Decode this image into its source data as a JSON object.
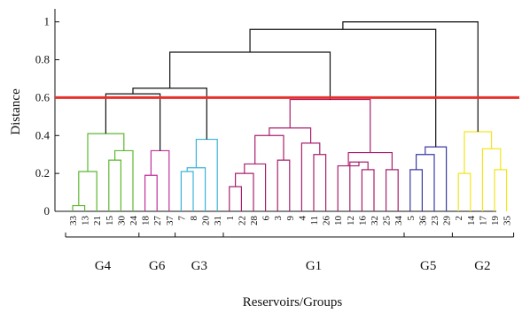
{
  "chart_data": {
    "type": "dendrogram",
    "xlabel": "Reservoirs/Groups",
    "ylabel": "Distance",
    "ylim": [
      0,
      1.05
    ],
    "yticks": [
      0,
      0.2,
      0.4,
      0.6,
      0.8,
      1
    ],
    "ytick_labels": [
      "0",
      "0.2",
      "0.4",
      "0.6",
      "0.8",
      "1"
    ],
    "cut_line": 0.6,
    "cut_line_color": "#e8302a",
    "grid": false,
    "leaves": [
      "33",
      "13",
      "21",
      "15",
      "30",
      "24",
      "18",
      "27",
      "37",
      "7",
      "8",
      "20",
      "31",
      "1",
      "22",
      "28",
      "6",
      "3",
      "9",
      "4",
      "11",
      "26",
      "10",
      "12",
      "16",
      "32",
      "25",
      "34",
      "5",
      "36",
      "23",
      "29",
      "2",
      "14",
      "17",
      "19",
      "35"
    ],
    "groups": [
      {
        "name": "G4",
        "members": [
          "33",
          "13",
          "21",
          "15",
          "30",
          "24"
        ],
        "color": "#5cb82e"
      },
      {
        "name": "G6",
        "members": [
          "18",
          "27",
          "37"
        ],
        "color": "#c0329a"
      },
      {
        "name": "G3",
        "members": [
          "7",
          "8",
          "20",
          "31"
        ],
        "color": "#3ab4d8"
      },
      {
        "name": "G1",
        "members": [
          "1",
          "22",
          "28",
          "6",
          "3",
          "9",
          "4",
          "11",
          "26",
          "10",
          "12",
          "16",
          "32",
          "25",
          "34"
        ],
        "color": "#a8206e"
      },
      {
        "name": "G5",
        "members": [
          "5",
          "36",
          "23",
          "29"
        ],
        "color": "#3a3aa6"
      },
      {
        "name": "G2",
        "members": [
          "2",
          "14",
          "17",
          "19",
          "35"
        ],
        "color": "#f2e61c"
      }
    ],
    "merges": [
      {
        "a": "33",
        "b": "13",
        "h": 0.03,
        "id": "n1",
        "color": "#5cb82e"
      },
      {
        "a": "n1",
        "b": "21",
        "h": 0.21,
        "id": "n2",
        "color": "#5cb82e"
      },
      {
        "a": "15",
        "b": "30",
        "h": 0.27,
        "id": "n3",
        "color": "#5cb82e"
      },
      {
        "a": "n3",
        "b": "24",
        "h": 0.32,
        "id": "n4",
        "color": "#5cb82e"
      },
      {
        "a": "n2",
        "b": "n4",
        "h": 0.41,
        "id": "n5",
        "color": "#5cb82e"
      },
      {
        "a": "18",
        "b": "27",
        "h": 0.19,
        "id": "n6",
        "color": "#c0329a"
      },
      {
        "a": "n6",
        "b": "37",
        "h": 0.32,
        "id": "n7",
        "color": "#c0329a"
      },
      {
        "a": "7",
        "b": "8",
        "h": 0.21,
        "id": "n8",
        "color": "#3ab4d8"
      },
      {
        "a": "n8",
        "b": "20",
        "h": 0.23,
        "id": "n9",
        "color": "#3ab4d8"
      },
      {
        "a": "n9",
        "b": "31",
        "h": 0.38,
        "id": "n10",
        "color": "#3ab4d8"
      },
      {
        "a": "1",
        "b": "22",
        "h": 0.13,
        "id": "n11",
        "color": "#a8206e"
      },
      {
        "a": "n11",
        "b": "28",
        "h": 0.2,
        "id": "n12",
        "color": "#a8206e"
      },
      {
        "a": "n12",
        "b": "6",
        "h": 0.25,
        "id": "n13",
        "color": "#a8206e"
      },
      {
        "a": "3",
        "b": "9",
        "h": 0.27,
        "id": "n14",
        "color": "#a8206e"
      },
      {
        "a": "n13",
        "b": "n14",
        "h": 0.4,
        "id": "n15",
        "color": "#a8206e"
      },
      {
        "a": "11",
        "b": "26",
        "h": 0.3,
        "id": "n16",
        "color": "#a8206e"
      },
      {
        "a": "4",
        "b": "n16",
        "h": 0.36,
        "id": "n17",
        "color": "#a8206e"
      },
      {
        "a": "n15",
        "b": "n17",
        "h": 0.44,
        "id": "n18",
        "color": "#a8206e"
      },
      {
        "a": "16",
        "b": "32",
        "h": 0.22,
        "id": "n19",
        "color": "#a8206e"
      },
      {
        "a": "12",
        "b": "n19",
        "h": 0.26,
        "id": "n20",
        "color": "#a8206e"
      },
      {
        "a": "10",
        "b": "n20",
        "h": 0.24,
        "id": "n21",
        "color": "#a8206e"
      },
      {
        "a": "25",
        "b": "34",
        "h": 0.22,
        "id": "n22",
        "color": "#a8206e"
      },
      {
        "a": "n21",
        "b": "n22",
        "h": 0.31,
        "id": "n23",
        "color": "#a8206e"
      },
      {
        "a": "n18",
        "b": "n23",
        "h": 0.59,
        "id": "n24",
        "color": "#a8206e"
      },
      {
        "a": "5",
        "b": "36",
        "h": 0.22,
        "id": "n25",
        "color": "#3a3aa6"
      },
      {
        "a": "n25",
        "b": "23",
        "h": 0.3,
        "id": "n26",
        "color": "#3a3aa6"
      },
      {
        "a": "n26",
        "b": "29",
        "h": 0.34,
        "id": "n27",
        "color": "#3a3aa6"
      },
      {
        "a": "2",
        "b": "14",
        "h": 0.2,
        "id": "n28",
        "color": "#f2e61c"
      },
      {
        "a": "19",
        "b": "35",
        "h": 0.22,
        "id": "n29",
        "color": "#f2e61c"
      },
      {
        "a": "17",
        "b": "n29",
        "h": 0.33,
        "id": "n30",
        "color": "#f2e61c"
      },
      {
        "a": "n28",
        "b": "n30",
        "h": 0.42,
        "id": "n31",
        "color": "#f2e61c"
      },
      {
        "a": "n5",
        "b": "n7",
        "h": 0.62,
        "id": "n32",
        "color": "#111111"
      },
      {
        "a": "n32",
        "b": "n10",
        "h": 0.65,
        "id": "n33",
        "color": "#111111"
      },
      {
        "a": "n33",
        "b": "n24",
        "h": 0.84,
        "id": "n34",
        "color": "#111111"
      },
      {
        "a": "n34",
        "b": "n27",
        "h": 0.96,
        "id": "n35",
        "color": "#111111"
      },
      {
        "a": "n35",
        "b": "n31",
        "h": 1.0,
        "id": "n36",
        "color": "#111111"
      }
    ]
  }
}
